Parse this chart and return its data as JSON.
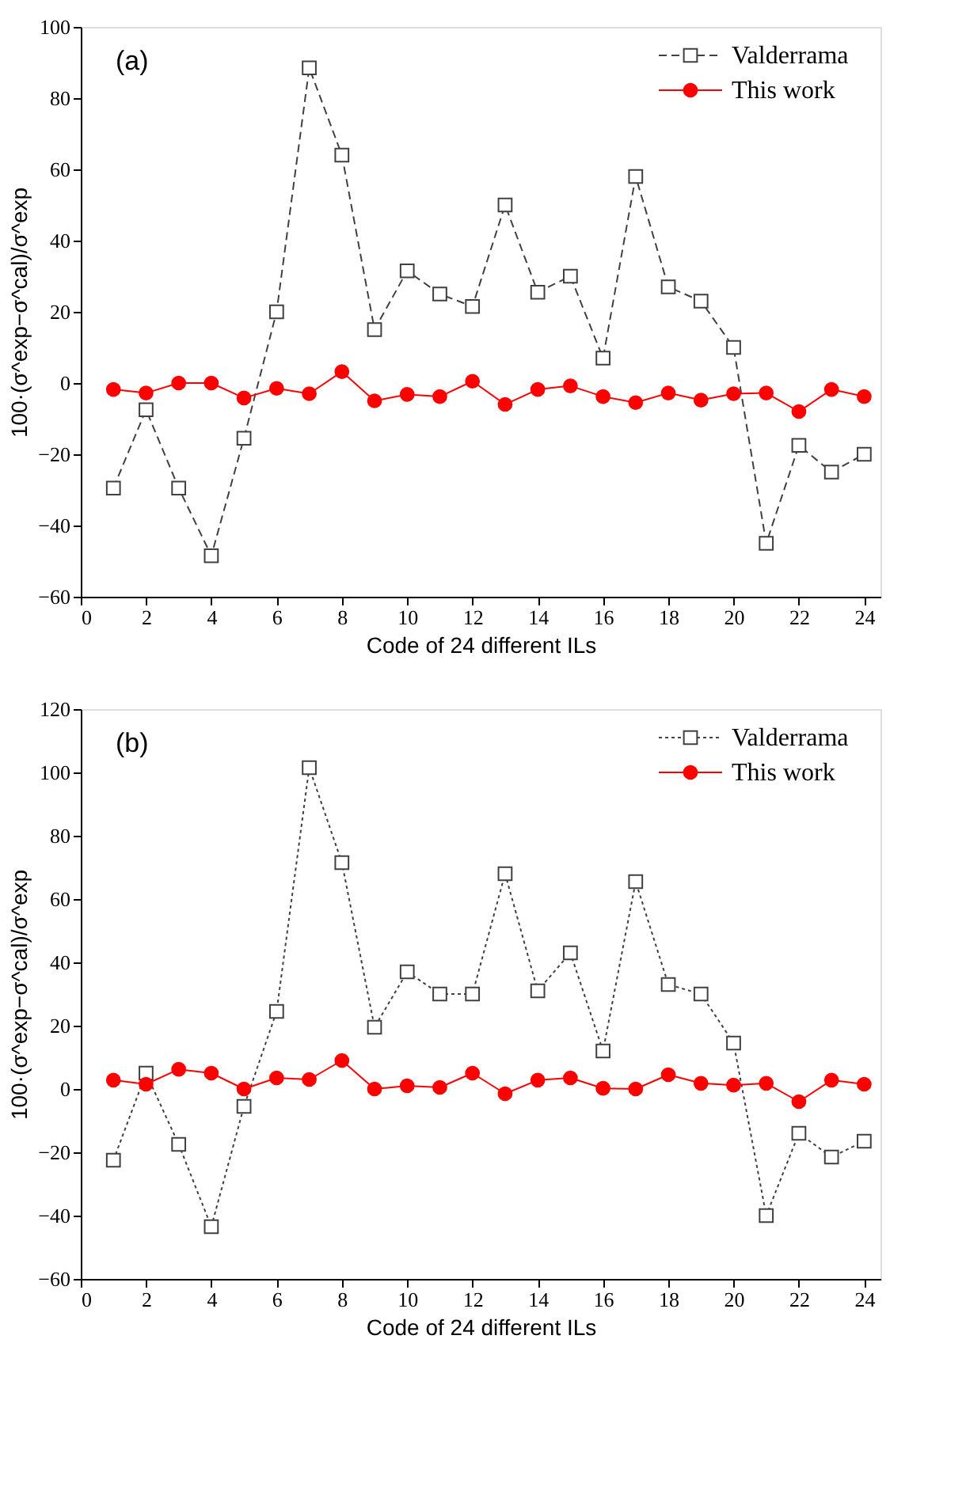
{
  "chart_data": [
    {
      "type": "line",
      "annotations": [
        "(a)"
      ],
      "xlabel": "Code of 24 different ILs",
      "ylabel": "100·(σ^exp−σ^cal)/σ^exp",
      "x": [
        1,
        2,
        3,
        4,
        5,
        6,
        7,
        8,
        9,
        10,
        11,
        12,
        13,
        14,
        15,
        16,
        17,
        18,
        19,
        20,
        21,
        22,
        23,
        24
      ],
      "xlim": [
        0,
        24.5
      ],
      "xticks": [
        0,
        2,
        4,
        6,
        8,
        10,
        12,
        14,
        16,
        18,
        20,
        22,
        24
      ],
      "ylim": [
        -60,
        100
      ],
      "yticks": [
        -60,
        -40,
        -20,
        0,
        20,
        40,
        60,
        80,
        100
      ],
      "grid": false,
      "legend": "top right",
      "series": [
        {
          "name": "Valderrama",
          "color": "#404040",
          "marker": "square",
          "line_style": "dashed",
          "values": [
            -29.5,
            -7.5,
            -29.5,
            -48.5,
            -15.5,
            20,
            88.5,
            64,
            15,
            31.5,
            25,
            21.5,
            50,
            25.5,
            30,
            7,
            58,
            27,
            23,
            10,
            -45,
            -17.5,
            -25,
            -20
          ]
        },
        {
          "name": "This work",
          "color": "#ff0000",
          "marker": "circle",
          "line_style": "solid",
          "values": [
            -1.8,
            -2.8,
            0,
            0,
            -4.2,
            -1.5,
            -3,
            3.2,
            -5,
            -3.2,
            -3.8,
            0.5,
            -6,
            -1.8,
            -0.8,
            -3.8,
            -5.5,
            -2.8,
            -4.8,
            -3,
            -2.8,
            -8,
            -1.8,
            -3.8
          ]
        }
      ]
    },
    {
      "type": "line",
      "annotations": [
        "(b)"
      ],
      "xlabel": "Code of 24 different ILs",
      "ylabel": "100·(σ^exp−σ^cal)/σ^exp",
      "x": [
        1,
        2,
        3,
        4,
        5,
        6,
        7,
        8,
        9,
        10,
        11,
        12,
        13,
        14,
        15,
        16,
        17,
        18,
        19,
        20,
        21,
        22,
        23,
        24
      ],
      "xlim": [
        0,
        24.5
      ],
      "xticks": [
        0,
        2,
        4,
        6,
        8,
        10,
        12,
        14,
        16,
        18,
        20,
        22,
        24
      ],
      "ylim": [
        -60,
        120
      ],
      "yticks": [
        -60,
        -40,
        -20,
        0,
        20,
        40,
        60,
        80,
        100,
        120
      ],
      "grid": false,
      "legend": "top right",
      "series": [
        {
          "name": "Valderrama",
          "color": "#404040",
          "marker": "square",
          "line_style": "dotted",
          "values": [
            -22.5,
            5,
            -17.5,
            -43.5,
            -5.5,
            24.5,
            101.5,
            71.5,
            19.5,
            37,
            30,
            30,
            68,
            31,
            43,
            12,
            65.5,
            33,
            30,
            14.5,
            -40,
            -14,
            -21.5,
            -16.5
          ]
        },
        {
          "name": "This work",
          "color": "#ff0000",
          "marker": "circle",
          "line_style": "solid",
          "values": [
            2.8,
            1.5,
            6.2,
            5,
            0,
            3.5,
            3,
            9,
            0,
            1,
            0.5,
            5,
            -1.5,
            2.8,
            3.5,
            0.2,
            0,
            4.5,
            1.8,
            1.2,
            1.8,
            -4,
            2.8,
            1.5
          ]
        }
      ]
    }
  ]
}
